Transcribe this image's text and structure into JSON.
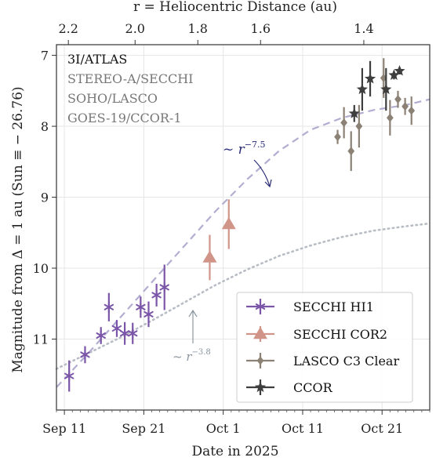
{
  "chart_data": {
    "type": "scatter",
    "title": "",
    "xlabel": "Date in 2025",
    "ylabel": "Magnitude from Δ = 1 au (Sun ≡ − 26.76)",
    "top_xlabel": "r = Heliocentric Distance (au)",
    "xlim": [
      -4,
      43
    ],
    "ylim": [
      12.0,
      6.85
    ],
    "y_inverted": true,
    "grid": true,
    "legend_position": "bottom-right",
    "x_ticks": [
      {
        "value": -3,
        "label": "Sep 11"
      },
      {
        "value": 7,
        "label": "Sep 21"
      },
      {
        "value": 17,
        "label": "Oct 1"
      },
      {
        "value": 27,
        "label": "Oct 11"
      },
      {
        "value": 37,
        "label": "Oct 21"
      }
    ],
    "y_ticks": [
      {
        "value": 7,
        "label": "7"
      },
      {
        "value": 8,
        "label": "8"
      },
      {
        "value": 9,
        "label": "9"
      },
      {
        "value": 10,
        "label": "10"
      },
      {
        "value": 11,
        "label": "11"
      }
    ],
    "top_ticks": [
      {
        "value": -2.5,
        "label": "2.2"
      },
      {
        "value": 5.9,
        "label": "2.0"
      },
      {
        "value": 13.8,
        "label": "1.8"
      },
      {
        "value": 21.7,
        "label": "1.6"
      },
      {
        "value": 34.7,
        "label": "1.4"
      }
    ],
    "text_block": [
      "3I/ATLAS",
      "STEREO-A/SECCHI",
      "SOHO/LASCO",
      "GOES-19/CCOR-1"
    ],
    "annotations": [
      {
        "label": "~ r⁻⁷˙⁵",
        "base": "~ r",
        "exp": "−7.5",
        "color": "#2b2d78"
      },
      {
        "label": "~ r⁻³˙⁸",
        "base": "~ r",
        "exp": "−3.8",
        "color": "#8a959f"
      }
    ],
    "series": [
      {
        "name": "SECCHI HI1",
        "marker": "asterisk",
        "color": "#7a55a8",
        "points": [
          {
            "x": -2.4,
            "y": 11.52,
            "err": 0.22
          },
          {
            "x": -0.4,
            "y": 11.22,
            "err": 0.12
          },
          {
            "x": 1.6,
            "y": 10.95,
            "err": 0.12
          },
          {
            "x": 2.6,
            "y": 10.55,
            "err": 0.2
          },
          {
            "x": 3.6,
            "y": 10.85,
            "err": 0.12
          },
          {
            "x": 4.6,
            "y": 10.92,
            "err": 0.16
          },
          {
            "x": 5.6,
            "y": 10.92,
            "err": 0.15
          },
          {
            "x": 6.6,
            "y": 10.55,
            "err": 0.15
          },
          {
            "x": 7.6,
            "y": 10.65,
            "err": 0.18
          },
          {
            "x": 8.6,
            "y": 10.38,
            "err": 0.16
          },
          {
            "x": 9.6,
            "y": 10.27,
            "err": 0.32
          }
        ]
      },
      {
        "name": "SECCHI COR2",
        "marker": "triangle",
        "color": "#d19489",
        "points": [
          {
            "x": 15.3,
            "y": 9.85,
            "err": 0.32
          },
          {
            "x": 17.7,
            "y": 9.38,
            "err": 0.35
          }
        ]
      },
      {
        "name": "LASCO C3 Clear",
        "marker": "diamond",
        "color": "#8b8174",
        "points": [
          {
            "x": 31.4,
            "y": 8.15,
            "err": 0.1
          },
          {
            "x": 32.2,
            "y": 7.95,
            "err": 0.22
          },
          {
            "x": 33.1,
            "y": 8.35,
            "err": 0.28
          },
          {
            "x": 34.1,
            "y": 8.0,
            "err": 0.3
          },
          {
            "x": 37.2,
            "y": 7.32,
            "err": 0.28
          },
          {
            "x": 38.0,
            "y": 7.88,
            "err": 0.25
          },
          {
            "x": 39.0,
            "y": 7.62,
            "err": 0.12
          },
          {
            "x": 39.9,
            "y": 7.72,
            "err": 0.12
          },
          {
            "x": 40.7,
            "y": 7.78,
            "err": 0.2
          }
        ]
      },
      {
        "name": "CCOR",
        "marker": "star",
        "color": "#3e3e3e",
        "points": [
          {
            "x": 33.5,
            "y": 7.82,
            "err": 0.12
          },
          {
            "x": 34.5,
            "y": 7.48,
            "err": 0.3
          },
          {
            "x": 35.5,
            "y": 7.33,
            "err": 0.25
          },
          {
            "x": 37.5,
            "y": 7.48,
            "err": 0.3
          },
          {
            "x": 38.5,
            "y": 7.28,
            "err": 0.06
          },
          {
            "x": 39.2,
            "y": 7.22,
            "err": 0.05
          }
        ]
      }
    ],
    "fits": [
      {
        "name": "r^-7.5",
        "style": "dashed",
        "color": "#b1aed1",
        "points": [
          [
            -4,
            11.68
          ],
          [
            0,
            11.2
          ],
          [
            4,
            10.7
          ],
          [
            8,
            10.2
          ],
          [
            12,
            9.7
          ],
          [
            16,
            9.2
          ],
          [
            20,
            8.75
          ],
          [
            24,
            8.35
          ],
          [
            28,
            8.05
          ],
          [
            32,
            7.88
          ],
          [
            36,
            7.77
          ],
          [
            40,
            7.7
          ],
          [
            43,
            7.62
          ]
        ]
      },
      {
        "name": "r^-3.8",
        "style": "dotted",
        "color": "#b8bcc4",
        "points": [
          [
            -4,
            11.42
          ],
          [
            0,
            11.2
          ],
          [
            4,
            10.98
          ],
          [
            8,
            10.74
          ],
          [
            12,
            10.49
          ],
          [
            16,
            10.24
          ],
          [
            20,
            10.02
          ],
          [
            24,
            9.83
          ],
          [
            28,
            9.68
          ],
          [
            32,
            9.56
          ],
          [
            36,
            9.47
          ],
          [
            40,
            9.41
          ],
          [
            43,
            9.37
          ]
        ]
      }
    ]
  }
}
